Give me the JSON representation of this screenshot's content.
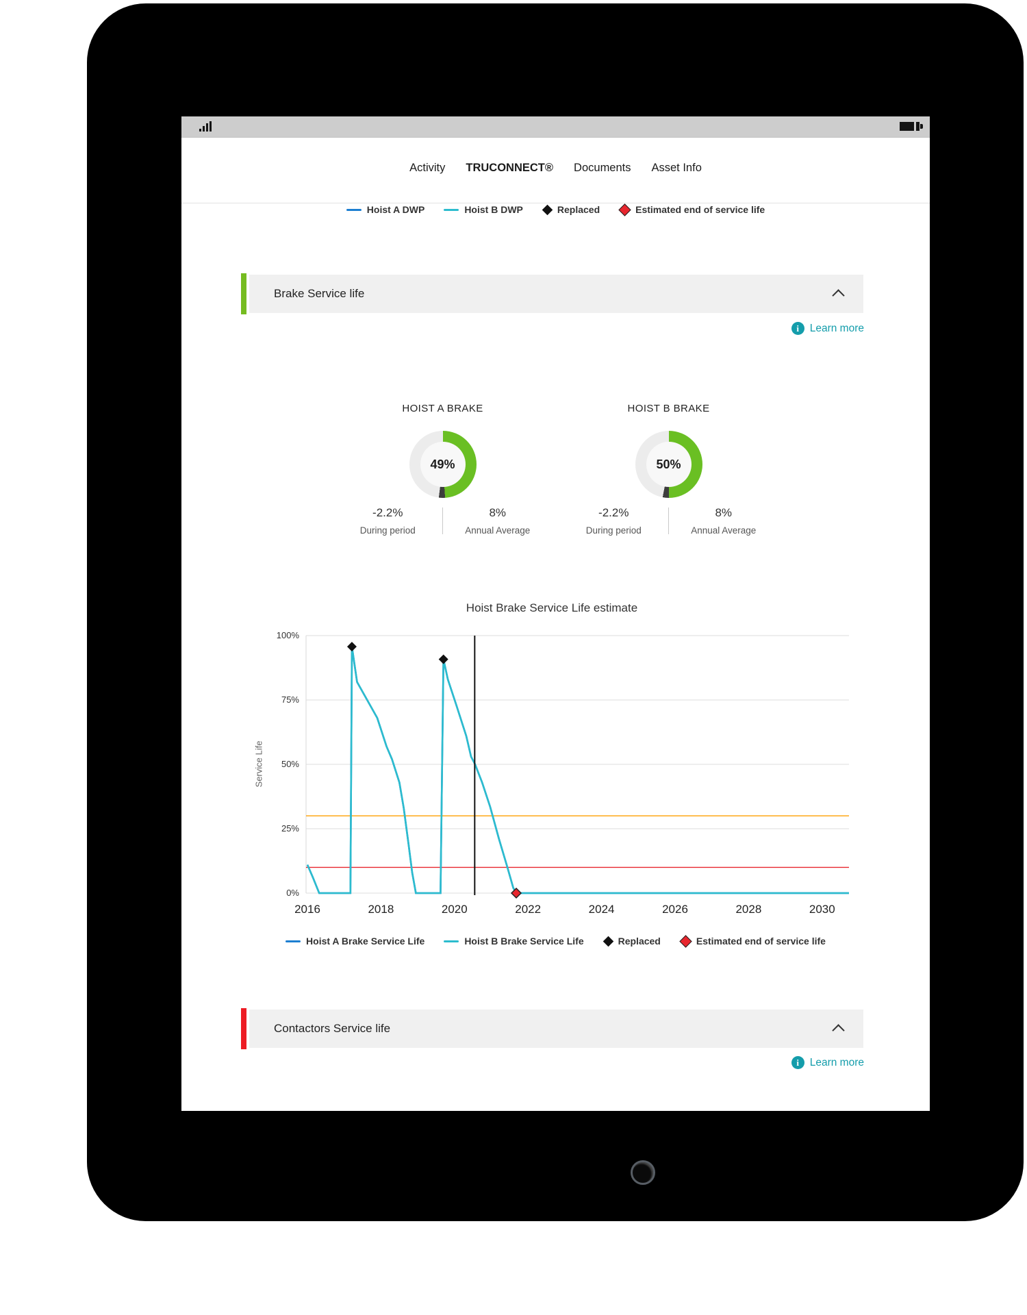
{
  "icons": {
    "signal": "signal-icon",
    "battery": "battery-icon",
    "info": "info-icon",
    "chevron": "chevron-up-icon",
    "home": "home-button"
  },
  "nav": {
    "tabs": [
      {
        "label": "Activity",
        "active": false
      },
      {
        "label": "TRUCONNECT®",
        "active": true
      },
      {
        "label": "Documents",
        "active": false
      },
      {
        "label": "Asset Info",
        "active": false
      }
    ]
  },
  "top_legend": {
    "items": [
      {
        "label": "Hoist A DWP",
        "marker": "line",
        "color": "#1d7fd1"
      },
      {
        "label": "Hoist B DWP",
        "marker": "line",
        "color": "#2cbcce"
      },
      {
        "label": "Replaced",
        "marker": "diamond",
        "color": "#111111"
      },
      {
        "label": "Estimated end of service life",
        "marker": "diamond",
        "color": "#e8262e",
        "border": "#222222"
      }
    ]
  },
  "sections": {
    "brake": {
      "title": "Brake Service life",
      "accent_color": "#76bc21",
      "learn_more_label": "Learn more"
    },
    "contactors": {
      "title": "Contactors Service life",
      "accent_color": "#ed1c24",
      "learn_more_label": "Learn more"
    }
  },
  "gauges": [
    {
      "title": "HOIST A BRAKE",
      "percent": 49,
      "value_label": "49%",
      "used_color": "#6abf23",
      "notch_percent": 3,
      "notch_color": "#3d3d3d",
      "track_color": "#ececec",
      "stats": [
        {
          "value": "-2.2%",
          "label": "During period"
        },
        {
          "value": "8%",
          "label": "Annual Average"
        }
      ]
    },
    {
      "title": "HOIST B BRAKE",
      "percent": 50,
      "value_label": "50%",
      "used_color": "#6abf23",
      "notch_percent": 3,
      "notch_color": "#3d3d3d",
      "track_color": "#ececec",
      "stats": [
        {
          "value": "-2.2%",
          "label": "During period"
        },
        {
          "value": "8%",
          "label": "Annual Average"
        }
      ]
    }
  ],
  "chart_data": {
    "type": "line",
    "title": "Hoist Brake Service Life estimate",
    "ylabel": "Service Life",
    "xlim": [
      2016,
      2030.8
    ],
    "ylim": [
      0,
      100
    ],
    "x_ticks": [
      2016,
      2018,
      2020,
      2022,
      2024,
      2026,
      2028,
      2030
    ],
    "y_ticks": [
      {
        "label": "100%",
        "value": 100
      },
      {
        "label": "75%",
        "value": 75
      },
      {
        "label": "50%",
        "value": 50
      },
      {
        "label": "25%",
        "value": 25
      },
      {
        "label": "0%",
        "value": 0
      }
    ],
    "grid": "horizontal",
    "gridline_values": [
      0,
      25,
      50,
      75,
      100
    ],
    "current_date_line_x": 2020.55,
    "threshold_lines": [
      {
        "value": 30,
        "color": "#ffa000"
      },
      {
        "value": 10,
        "color": "#e8262e"
      }
    ],
    "series": [
      {
        "name": "Hoist A Brake Service Life",
        "color": "#1d7fd1",
        "points": [
          [
            2016.0,
            11
          ],
          [
            2016.15,
            6
          ],
          [
            2016.32,
            0
          ],
          [
            2017.17,
            0
          ],
          [
            2017.21,
            95.7
          ],
          [
            2017.35,
            82
          ],
          [
            2017.9,
            68
          ],
          [
            2018.15,
            57
          ],
          [
            2018.3,
            52
          ],
          [
            2018.5,
            43
          ],
          [
            2018.62,
            33
          ],
          [
            2018.75,
            19
          ],
          [
            2018.85,
            8
          ],
          [
            2018.95,
            0
          ],
          [
            2019.62,
            0
          ],
          [
            2019.7,
            90.8
          ],
          [
            2019.82,
            83
          ],
          [
            2020.05,
            73
          ],
          [
            2020.32,
            61
          ],
          [
            2020.45,
            53
          ],
          [
            2020.56,
            50
          ],
          [
            2020.75,
            43
          ],
          [
            2020.97,
            33.5
          ],
          [
            2021.21,
            21
          ],
          [
            2021.44,
            10
          ],
          [
            2021.6,
            2
          ],
          [
            2021.68,
            0
          ],
          [
            2030.8,
            0
          ]
        ]
      },
      {
        "name": "Hoist B Brake Service Life",
        "color": "#2cbcce",
        "points": [
          [
            2016.0,
            11
          ],
          [
            2016.15,
            6
          ],
          [
            2016.32,
            0
          ],
          [
            2017.17,
            0
          ],
          [
            2017.21,
            95.7
          ],
          [
            2017.35,
            82
          ],
          [
            2017.9,
            68
          ],
          [
            2018.15,
            57
          ],
          [
            2018.3,
            52
          ],
          [
            2018.5,
            43
          ],
          [
            2018.62,
            33
          ],
          [
            2018.75,
            19
          ],
          [
            2018.85,
            8
          ],
          [
            2018.95,
            0
          ],
          [
            2019.62,
            0
          ],
          [
            2019.7,
            90.8
          ],
          [
            2019.82,
            83
          ],
          [
            2020.05,
            73
          ],
          [
            2020.32,
            61
          ],
          [
            2020.45,
            53
          ],
          [
            2020.56,
            50
          ],
          [
            2020.75,
            43
          ],
          [
            2020.97,
            33.5
          ],
          [
            2021.21,
            21
          ],
          [
            2021.44,
            10
          ],
          [
            2021.6,
            2
          ],
          [
            2021.68,
            0
          ],
          [
            2030.8,
            0
          ]
        ]
      }
    ],
    "markers": {
      "replaced": {
        "color": "#111111",
        "points": [
          [
            2017.21,
            95.7
          ],
          [
            2019.7,
            90.8
          ]
        ]
      },
      "end_of_service_life": {
        "color": "#e8262e",
        "points": [
          [
            2021.68,
            0
          ]
        ]
      }
    }
  },
  "chart_legend": {
    "items": [
      {
        "label": "Hoist A Brake Service Life",
        "marker": "line",
        "color": "#1d7fd1"
      },
      {
        "label": "Hoist B Brake Service Life",
        "marker": "line",
        "color": "#2cbcce"
      },
      {
        "label": "Replaced",
        "marker": "diamond",
        "color": "#111111"
      },
      {
        "label": "Estimated end of service life",
        "marker": "diamond",
        "color": "#e8262e",
        "border": "#222222"
      }
    ]
  }
}
